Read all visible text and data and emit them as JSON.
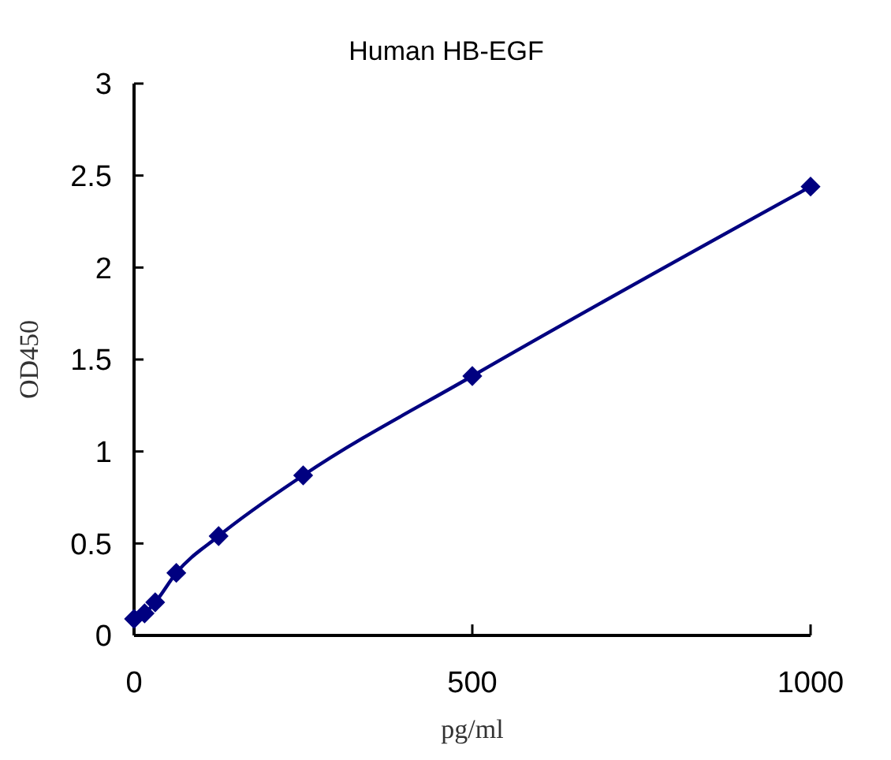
{
  "chart_data": {
    "type": "line",
    "title": "Human HB-EGF",
    "xlabel": "pg/ml",
    "ylabel": "OD450",
    "x": [
      0,
      15.6,
      31.25,
      62.5,
      125,
      250,
      500,
      1000
    ],
    "series": [
      {
        "color": "#000080",
        "values": [
          0.09,
          0.12,
          0.18,
          0.34,
          0.54,
          0.87,
          1.41,
          2.44
        ]
      }
    ],
    "xlim": [
      0,
      1000
    ],
    "xticks": [
      0,
      500,
      1000
    ],
    "ylim": [
      0,
      3
    ],
    "yticks": [
      0,
      0.5,
      1,
      1.5,
      2,
      2.5,
      3
    ],
    "grid": false,
    "marker": "diamond",
    "line_style": "solid"
  }
}
